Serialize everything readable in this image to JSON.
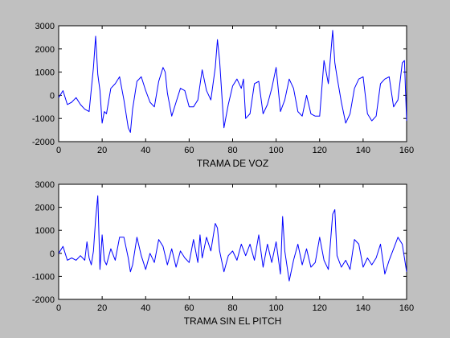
{
  "chart_data": [
    {
      "type": "line",
      "xlabel": "TRAMA DE VOZ",
      "ylabel": "",
      "title": "",
      "xlim": [
        0,
        160
      ],
      "ylim": [
        -2000,
        3000
      ],
      "xticks": [
        0,
        20,
        40,
        60,
        80,
        100,
        120,
        140,
        160
      ],
      "yticks": [
        -2000,
        -1000,
        0,
        1000,
        2000,
        3000
      ],
      "grid": false,
      "line_color": "#0000ff",
      "series": [
        {
          "x": [
            0,
            2,
            4,
            6,
            8,
            10,
            12,
            14,
            16,
            17,
            18,
            19,
            20,
            21,
            22,
            24,
            26,
            28,
            30,
            32,
            33,
            34,
            35,
            36,
            38,
            40,
            42,
            44,
            46,
            48,
            49,
            50,
            52,
            54,
            56,
            58,
            60,
            62,
            64,
            66,
            68,
            70,
            72,
            73,
            74,
            76,
            78,
            80,
            82,
            84,
            85,
            86,
            88,
            90,
            92,
            94,
            96,
            98,
            100,
            102,
            104,
            106,
            108,
            110,
            112,
            114,
            116,
            118,
            120,
            122,
            124,
            126,
            127,
            128,
            130,
            132,
            134,
            136,
            138,
            140,
            142,
            144,
            146,
            148,
            150,
            152,
            154,
            156,
            158,
            159,
            160
          ],
          "values": [
            -100,
            200,
            -400,
            -300,
            -100,
            -400,
            -600,
            -700,
            1200,
            2550,
            900,
            200,
            -1200,
            -700,
            -800,
            300,
            500,
            800,
            -200,
            -1400,
            -1600,
            -600,
            0,
            600,
            800,
            200,
            -300,
            -500,
            600,
            1200,
            1000,
            100,
            -900,
            -300,
            300,
            200,
            -500,
            -500,
            -200,
            1100,
            200,
            -200,
            1200,
            2400,
            1500,
            -1400,
            -400,
            400,
            700,
            300,
            700,
            -1000,
            -800,
            500,
            600,
            -800,
            -400,
            300,
            1200,
            -700,
            -200,
            700,
            300,
            -700,
            -900,
            0,
            -800,
            -900,
            -900,
            1500,
            500,
            2800,
            1400,
            800,
            -300,
            -1200,
            -800,
            300,
            700,
            800,
            -800,
            -1100,
            -900,
            500,
            700,
            800,
            -500,
            -200,
            1400,
            1500,
            -1100
          ]
        }
      ]
    },
    {
      "type": "line",
      "xlabel": "TRAMA SIN EL PITCH",
      "ylabel": "",
      "title": "",
      "xlim": [
        0,
        160
      ],
      "ylim": [
        -2000,
        3000
      ],
      "xticks": [
        0,
        20,
        40,
        60,
        80,
        100,
        120,
        140,
        160
      ],
      "yticks": [
        -2000,
        -1000,
        0,
        1000,
        2000,
        3000
      ],
      "grid": false,
      "line_color": "#0000ff",
      "series": [
        {
          "x": [
            0,
            2,
            4,
            6,
            8,
            10,
            12,
            13,
            14,
            15,
            16,
            17,
            18,
            19,
            20,
            21,
            22,
            24,
            26,
            28,
            30,
            32,
            33,
            34,
            36,
            38,
            40,
            42,
            44,
            46,
            48,
            50,
            52,
            54,
            56,
            58,
            60,
            62,
            64,
            65,
            66,
            68,
            70,
            72,
            73,
            74,
            76,
            78,
            80,
            82,
            84,
            86,
            88,
            90,
            92,
            94,
            96,
            98,
            100,
            102,
            103,
            104,
            106,
            108,
            110,
            112,
            114,
            116,
            118,
            120,
            122,
            124,
            126,
            127,
            128,
            130,
            132,
            134,
            136,
            138,
            140,
            142,
            144,
            146,
            148,
            150,
            152,
            154,
            156,
            158,
            160
          ],
          "values": [
            0,
            300,
            -300,
            -200,
            -300,
            -100,
            -300,
            500,
            -200,
            -500,
            100,
            1500,
            2500,
            -700,
            800,
            -300,
            -500,
            200,
            -300,
            700,
            700,
            -200,
            -800,
            -500,
            700,
            -100,
            -700,
            0,
            -400,
            600,
            300,
            -500,
            200,
            -600,
            100,
            -200,
            -400,
            600,
            -400,
            800,
            -200,
            700,
            100,
            1300,
            1100,
            100,
            -800,
            -100,
            100,
            -300,
            400,
            -100,
            400,
            -300,
            800,
            -600,
            400,
            -400,
            500,
            -900,
            1600,
            100,
            -1200,
            -300,
            400,
            -500,
            200,
            -600,
            -400,
            700,
            -300,
            -700,
            1700,
            1900,
            -100,
            -600,
            -300,
            -700,
            600,
            400,
            -600,
            -200,
            -500,
            -200,
            400,
            -900,
            -300,
            200,
            700,
            400,
            -800
          ]
        }
      ]
    }
  ]
}
